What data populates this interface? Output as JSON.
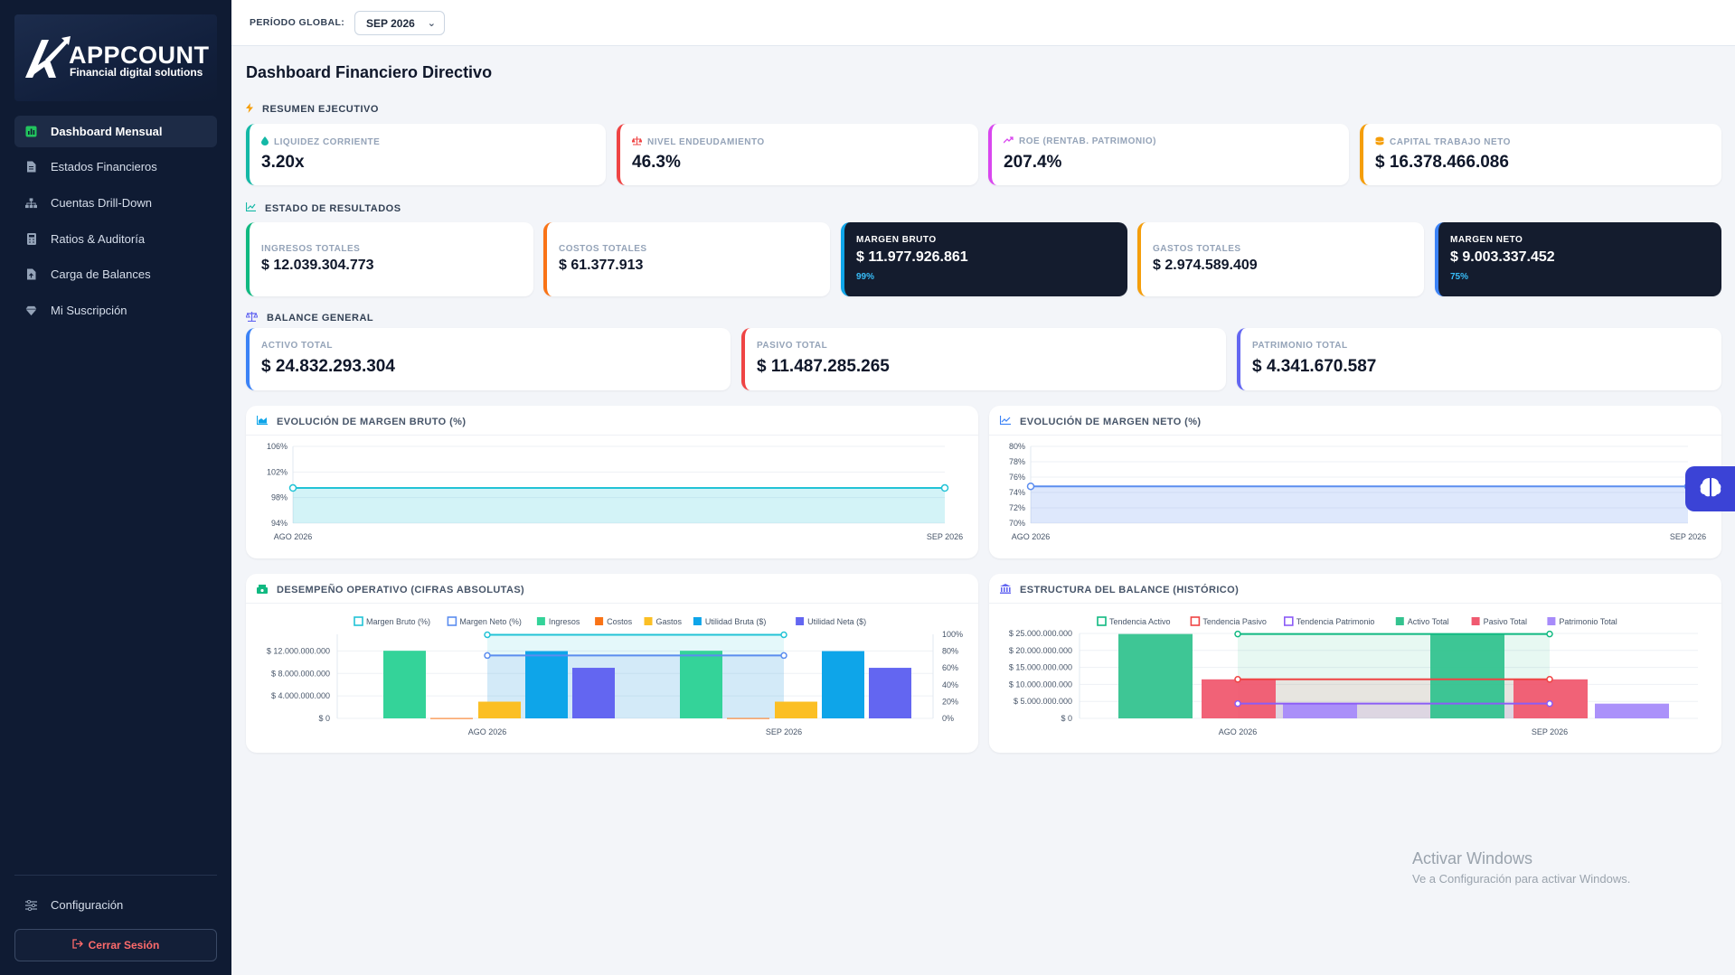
{
  "app": {
    "brand": "APPCOUNT",
    "tagline": "Financial digital solutions"
  },
  "sidebar": {
    "items": [
      {
        "label": "Dashboard Mensual",
        "icon": "chart-square-icon",
        "active": true
      },
      {
        "label": "Estados Financieros",
        "icon": "document-icon",
        "active": false
      },
      {
        "label": "Cuentas Drill-Down",
        "icon": "sitemap-icon",
        "active": false
      },
      {
        "label": "Ratios & Auditoría",
        "icon": "calculator-icon",
        "active": false
      },
      {
        "label": "Carga de Balances",
        "icon": "file-upload-icon",
        "active": false
      },
      {
        "label": "Mi Suscripción",
        "icon": "diamond-icon",
        "active": false
      }
    ],
    "settings_label": "Configuración",
    "logout_label": "Cerrar Sesión"
  },
  "topbar": {
    "period_label": "PERÍODO GLOBAL:",
    "period_value": "SEP 2026"
  },
  "page": {
    "title": "Dashboard Financiero Directivo"
  },
  "sections": {
    "resumen": "RESUMEN EJECUTIVO",
    "resultados": "ESTADO DE RESULTADOS",
    "balance": "BALANCE GENERAL"
  },
  "resumen_kpis": [
    {
      "label": "LIQUIDEZ CORRIENTE",
      "value": "3.20x",
      "color": "#14b8a6",
      "icon": "droplet-icon"
    },
    {
      "label": "NIVEL ENDEUDAMIENTO",
      "value": "46.3%",
      "color": "#ef4444",
      "icon": "scale-icon"
    },
    {
      "label": "ROE (RENTAB. PATRIMONIO)",
      "value": "207.4%",
      "color": "#d946ef",
      "icon": "trend-up-icon"
    },
    {
      "label": "CAPITAL TRABAJO NETO",
      "value": "$ 16.378.466.086",
      "color": "#f59e0b",
      "icon": "coins-icon"
    }
  ],
  "resultados_kpis": [
    {
      "label": "INGRESOS TOTALES",
      "value": "$ 12.039.304.773",
      "color": "#10b981",
      "dark": false,
      "sub": ""
    },
    {
      "label": "COSTOS TOTALES",
      "value": "$ 61.377.913",
      "color": "#f97316",
      "dark": false,
      "sub": ""
    },
    {
      "label": "MARGEN BRUTO",
      "value": "$ 11.977.926.861",
      "color": "#0ea5e9",
      "dark": true,
      "sub": "99%"
    },
    {
      "label": "GASTOS TOTALES",
      "value": "$ 2.974.589.409",
      "color": "#f59e0b",
      "dark": false,
      "sub": ""
    },
    {
      "label": "MARGEN NETO",
      "value": "$ 9.003.337.452",
      "color": "#3b82f6",
      "dark": true,
      "sub": "75%"
    }
  ],
  "balance_kpis": [
    {
      "label": "ACTIVO TOTAL",
      "value": "$ 24.832.293.304",
      "color": "#3b82f6"
    },
    {
      "label": "PASIVO TOTAL",
      "value": "$ 11.487.285.265",
      "color": "#ef4444"
    },
    {
      "label": "PATRIMONIO TOTAL",
      "value": "$ 4.341.670.587",
      "color": "#6366f1"
    }
  ],
  "chart_data": [
    {
      "type": "area",
      "title": "EVOLUCIÓN DE MARGEN BRUTO (%)",
      "categories": [
        "AGO 2026",
        "SEP 2026"
      ],
      "yticks": [
        "106%",
        "102%",
        "98%",
        "94%"
      ],
      "ylim": [
        94,
        106
      ],
      "series": [
        {
          "values": [
            99.5,
            99.5
          ],
          "color": "#22c3d6"
        }
      ]
    },
    {
      "type": "area",
      "title": "EVOLUCIÓN DE MARGEN NETO (%)",
      "categories": [
        "AGO 2026",
        "SEP 2026"
      ],
      "yticks": [
        "80%",
        "78%",
        "76%",
        "74%",
        "72%",
        "70%"
      ],
      "ylim": [
        70,
        80
      ],
      "series": [
        {
          "values": [
            74.8,
            74.8
          ],
          "color": "#5b8def"
        }
      ]
    },
    {
      "type": "bar",
      "title": "DESEMPEÑO OPERATIVO (CIFRAS ABSOLUTAS)",
      "categories": [
        "AGO 2026",
        "SEP 2026"
      ],
      "yticks_left": [
        "$ 12.000.000.000",
        "$ 8.000.000.000",
        "$ 4.000.000.000",
        "$ 0"
      ],
      "yticks_right": [
        "100%",
        "80%",
        "60%",
        "40%",
        "20%",
        "0%"
      ],
      "ylim": [
        0,
        14000000000
      ],
      "ylim_right": [
        0,
        100
      ],
      "series": [
        {
          "name": "Margen Bruto (%)",
          "kind": "line-pct",
          "values": [
            99.5,
            99.5
          ],
          "color": "#22c3d6"
        },
        {
          "name": "Margen Neto (%)",
          "kind": "line-pct",
          "values": [
            74.8,
            74.8
          ],
          "color": "#5b8def"
        },
        {
          "name": "Ingresos",
          "kind": "bar",
          "values": [
            12039304773,
            12039304773
          ],
          "color": "#34d399"
        },
        {
          "name": "Costos",
          "kind": "bar",
          "values": [
            61377913,
            61377913
          ],
          "color": "#f97316"
        },
        {
          "name": "Gastos",
          "kind": "bar",
          "values": [
            2974589409,
            2974589409
          ],
          "color": "#fbbf24"
        },
        {
          "name": "Utilidad Bruta ($)",
          "kind": "bar",
          "values": [
            11977926861,
            11977926861
          ],
          "color": "#0ea5e9"
        },
        {
          "name": "Utilidad Neta ($)",
          "kind": "bar",
          "values": [
            9003337452,
            9003337452
          ],
          "color": "#6366f1"
        }
      ]
    },
    {
      "type": "bar",
      "title": "ESTRUCTURA DEL BALANCE (HISTÓRICO)",
      "categories": [
        "AGO 2026",
        "SEP 2026"
      ],
      "yticks": [
        "$ 25.000.000.000",
        "$ 20.000.000.000",
        "$ 15.000.000.000",
        "$ 10.000.000.000",
        "$ 5.000.000.000",
        "$ 0"
      ],
      "ylim": [
        0,
        25000000000
      ],
      "series": [
        {
          "name": "Tendencia Activo",
          "kind": "line",
          "values": [
            24832293304,
            24832293304
          ],
          "color": "#10b981"
        },
        {
          "name": "Tendencia Pasivo",
          "kind": "line",
          "values": [
            11487285265,
            11487285265
          ],
          "color": "#ef4444"
        },
        {
          "name": "Tendencia Patrimonio",
          "kind": "line",
          "values": [
            4341670587,
            4341670587
          ],
          "color": "#8b5cf6"
        },
        {
          "name": "Activo Total",
          "kind": "bar",
          "values": [
            24832293304,
            24832293304
          ],
          "color": "#34c38f"
        },
        {
          "name": "Pasivo Total",
          "kind": "bar",
          "values": [
            11487285265,
            11487285265
          ],
          "color": "#f05a70"
        },
        {
          "name": "Patrimonio Total",
          "kind": "bar",
          "values": [
            4341670587,
            4341670587
          ],
          "color": "#a78bfa"
        }
      ]
    }
  ],
  "watermark": {
    "line1": "Activar Windows",
    "line2": "Ve a Configuración para activar Windows."
  }
}
